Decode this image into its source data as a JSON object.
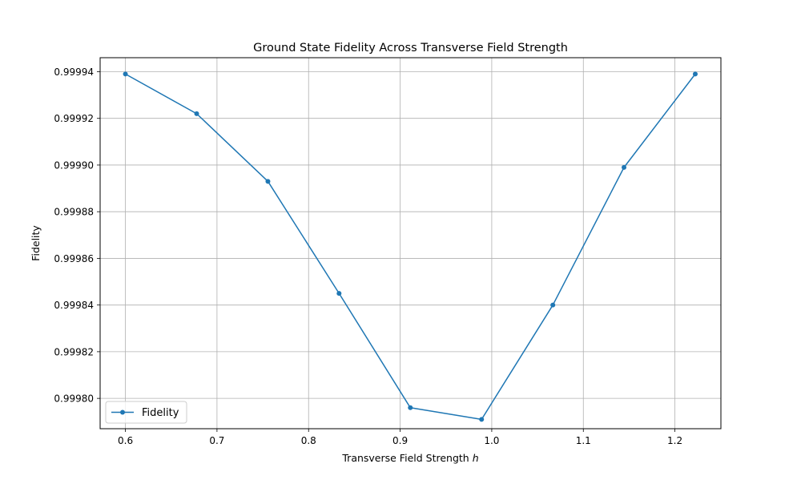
{
  "chart_data": {
    "type": "line",
    "title": "Ground State Fidelity Across Transverse Field Strength",
    "xlabel": "Transverse Field Strength ",
    "xlabel_var": "h",
    "ylabel": "Fidelity",
    "xlim": [
      0.5724,
      1.2502
    ],
    "ylim": [
      0.999787,
      0.999946
    ],
    "xticks": [
      0.6,
      0.7,
      0.8,
      0.9,
      1.0,
      1.1,
      1.2
    ],
    "xtick_labels": [
      "0.6",
      "0.7",
      "0.8",
      "0.9",
      "1.0",
      "1.1",
      "1.2"
    ],
    "yticks": [
      0.9998,
      0.99982,
      0.99984,
      0.99986,
      0.99988,
      0.9999,
      0.99992,
      0.99994
    ],
    "ytick_labels": [
      "0.99980",
      "0.99982",
      "0.99984",
      "0.99986",
      "0.99988",
      "0.99990",
      "0.99992",
      "0.99994"
    ],
    "grid": true,
    "legend_position": "lower-left",
    "series": [
      {
        "name": "Fidelity",
        "color": "#1f77b4",
        "marker": "circle",
        "x": [
          0.6,
          0.6778,
          0.7556,
          0.8333,
          0.9111,
          0.9889,
          1.0667,
          1.1444,
          1.2222
        ],
        "y": [
          0.999939,
          0.999922,
          0.999893,
          0.999845,
          0.999796,
          0.999791,
          0.99984,
          0.999899,
          0.999939
        ]
      }
    ]
  }
}
